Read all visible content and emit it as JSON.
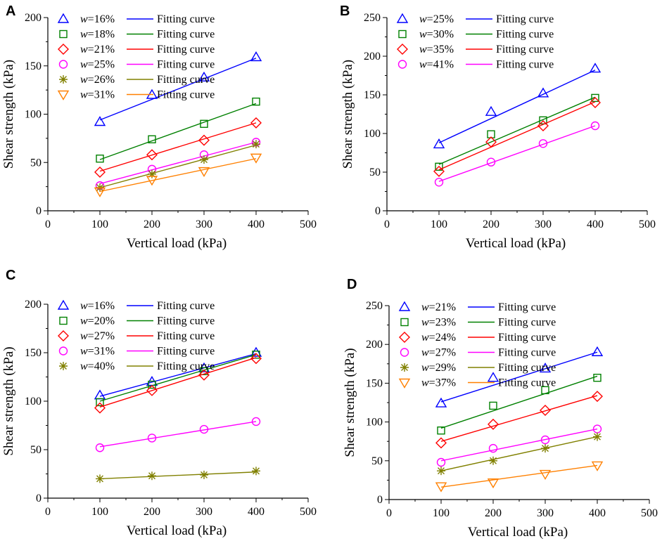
{
  "chart_data": [
    {
      "type": "scatter",
      "panel_label": "A",
      "xlabel": "Vertical load (kPa)",
      "ylabel": "Shear strength (kPa)",
      "xlim": [
        0,
        500
      ],
      "ylim": [
        0,
        200
      ],
      "xticks": [
        0,
        100,
        200,
        300,
        400,
        500
      ],
      "yticks": [
        0,
        50,
        100,
        150,
        200
      ],
      "legend_position": "top-left",
      "fit_label": "Fitting curve",
      "x": [
        100,
        200,
        300,
        400
      ],
      "series": [
        {
          "name": "w=16%",
          "w": "=16%",
          "marker": "triangle",
          "color": "#0000ff",
          "values": [
            92,
            120,
            138,
            159
          ],
          "fit": [
            94,
            116,
            137,
            158
          ]
        },
        {
          "name": "w=18%",
          "w": "=18%",
          "marker": "square",
          "color": "#008000",
          "values": [
            54,
            74,
            90,
            113
          ],
          "fit": [
            53,
            72,
            92,
            111
          ]
        },
        {
          "name": "w=21%",
          "w": "=21%",
          "marker": "diamond",
          "color": "#ff0000",
          "values": [
            40,
            58,
            73,
            91
          ],
          "fit": [
            41,
            58,
            74,
            91
          ]
        },
        {
          "name": "w=25%",
          "w": "=25%",
          "marker": "circle",
          "color": "#ff00ff",
          "values": [
            26,
            43,
            58,
            71
          ],
          "fit": [
            28,
            42,
            57,
            71
          ]
        },
        {
          "name": "w=26%",
          "w": "=26%",
          "marker": "asterisk",
          "color": "#808000",
          "values": [
            24,
            38,
            53,
            69
          ],
          "fit": [
            24,
            39,
            53,
            68
          ]
        },
        {
          "name": "w=31%",
          "w": "=31%",
          "marker": "triangle-down",
          "color": "#ff8000",
          "values": [
            20,
            32,
            41,
            55
          ],
          "fit": [
            20,
            31,
            43,
            54
          ]
        }
      ]
    },
    {
      "type": "scatter",
      "panel_label": "B",
      "xlabel": "Vertical load (kPa)",
      "ylabel": "Shear strength (kPa)",
      "xlim": [
        0,
        500
      ],
      "ylim": [
        0,
        250
      ],
      "xticks": [
        0,
        100,
        200,
        300,
        400,
        500
      ],
      "yticks": [
        0,
        50,
        100,
        150,
        200,
        250
      ],
      "legend_position": "top-left",
      "fit_label": "Fitting curve",
      "x": [
        100,
        200,
        300,
        400
      ],
      "series": [
        {
          "name": "w=25%",
          "w": "=25%",
          "marker": "triangle",
          "color": "#0000ff",
          "values": [
            86,
            128,
            152,
            184
          ],
          "fit": [
            88,
            119,
            150,
            182
          ]
        },
        {
          "name": "w=30%",
          "w": "=30%",
          "marker": "square",
          "color": "#008000",
          "values": [
            57,
            99,
            117,
            146
          ],
          "fit": [
            60,
            89,
            118,
            147
          ]
        },
        {
          "name": "w=35%",
          "w": "=35%",
          "marker": "diamond",
          "color": "#ff0000",
          "values": [
            51,
            89,
            110,
            140
          ],
          "fit": [
            53,
            82,
            112,
            141
          ]
        },
        {
          "name": "w=41%",
          "w": "=41%",
          "marker": "circle",
          "color": "#ff00ff",
          "values": [
            37,
            63,
            87,
            110
          ],
          "fit": [
            38,
            62,
            86,
            110
          ]
        }
      ]
    },
    {
      "type": "scatter",
      "panel_label": "C",
      "xlabel": "Vertical load (kPa)",
      "ylabel": "Shear strength (kPa)",
      "xlim": [
        0,
        500
      ],
      "ylim": [
        0,
        200
      ],
      "xticks": [
        0,
        100,
        200,
        300,
        400,
        500
      ],
      "yticks": [
        0,
        50,
        100,
        150,
        200
      ],
      "legend_position": "top-left",
      "fit_label": "Fitting curve",
      "x": [
        100,
        200,
        300,
        400
      ],
      "series": [
        {
          "name": "w=16%",
          "w": "=16%",
          "marker": "triangle",
          "color": "#0000ff",
          "values": [
            106,
            120,
            134,
            150
          ],
          "fit": [
            105,
            120,
            134,
            149
          ]
        },
        {
          "name": "w=20%",
          "w": "=20%",
          "marker": "square",
          "color": "#008000",
          "values": [
            99,
            117,
            131,
            148
          ],
          "fit": [
            100,
            116,
            132,
            148
          ]
        },
        {
          "name": "w=27%",
          "w": "=27%",
          "marker": "diamond",
          "color": "#ff0000",
          "values": [
            93,
            111,
            127,
            144
          ],
          "fit": [
            94,
            111,
            128,
            145
          ]
        },
        {
          "name": "w=31%",
          "w": "=31%",
          "marker": "circle",
          "color": "#ff00ff",
          "values": [
            52,
            62,
            71,
            79
          ],
          "fit": [
            53,
            62,
            71,
            79
          ]
        },
        {
          "name": "w=40%",
          "w": "=40%",
          "marker": "asterisk",
          "color": "#808000",
          "values": [
            20,
            23,
            24,
            28
          ],
          "fit": [
            20,
            22,
            25,
            27
          ]
        }
      ]
    },
    {
      "type": "scatter",
      "panel_label": "D",
      "xlabel": "Vertical load (kPa)",
      "ylabel": "Shear strength (kPa)",
      "xlim": [
        0,
        500
      ],
      "ylim": [
        0,
        250
      ],
      "xticks": [
        0,
        100,
        200,
        300,
        400,
        500
      ],
      "yticks": [
        0,
        50,
        100,
        150,
        200,
        250
      ],
      "legend_position": "top-left",
      "fit_label": "Fitting curve",
      "x": [
        100,
        200,
        300,
        400
      ],
      "series": [
        {
          "name": "w=21%",
          "w": "=21%",
          "marker": "triangle",
          "color": "#0000ff",
          "values": [
            124,
            157,
            169,
            190
          ],
          "fit": [
            126,
            147,
            168,
            190
          ]
        },
        {
          "name": "w=23%",
          "w": "=23%",
          "marker": "square",
          "color": "#008000",
          "values": [
            89,
            121,
            141,
            157
          ],
          "fit": [
            92,
            115,
            137,
            159
          ]
        },
        {
          "name": "w=24%",
          "w": "=24%",
          "marker": "diamond",
          "color": "#ff0000",
          "values": [
            73,
            97,
            115,
            133
          ],
          "fit": [
            75,
            95,
            114,
            134
          ]
        },
        {
          "name": "w=27%",
          "w": "=27%",
          "marker": "circle",
          "color": "#ff00ff",
          "values": [
            48,
            66,
            77,
            91
          ],
          "fit": [
            50,
            63,
            77,
            91
          ]
        },
        {
          "name": "w=29%",
          "w": "=29%",
          "marker": "asterisk",
          "color": "#808000",
          "values": [
            37,
            50,
            66,
            81
          ],
          "fit": [
            37,
            52,
            66,
            81
          ]
        },
        {
          "name": "w=37%",
          "w": "=37%",
          "marker": "triangle-down",
          "color": "#ff8000",
          "values": [
            17,
            22,
            33,
            44
          ],
          "fit": [
            16,
            25,
            35,
            44
          ]
        }
      ]
    }
  ]
}
